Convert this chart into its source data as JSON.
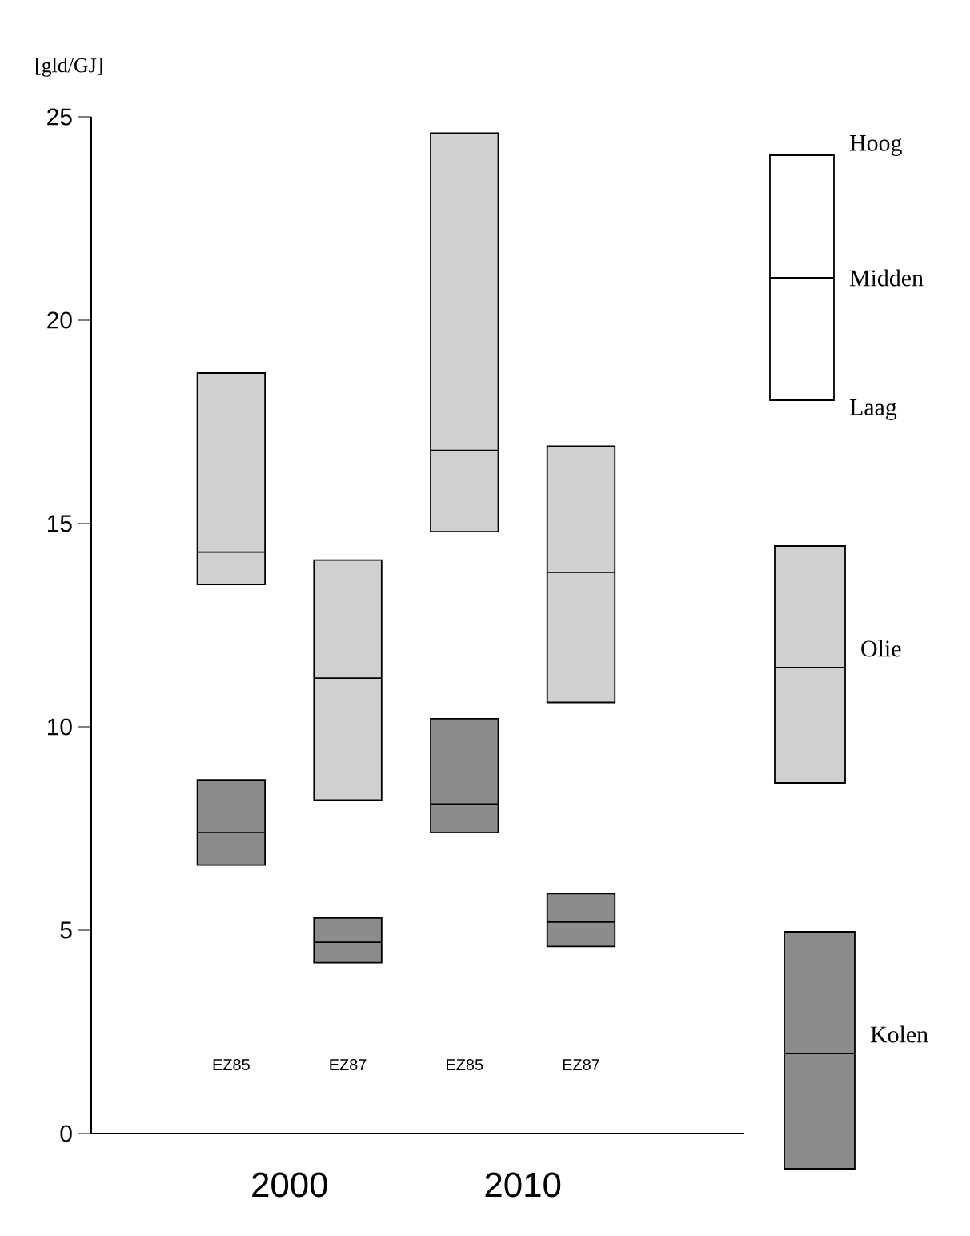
{
  "chart_data": {
    "type": "box",
    "ylabel": "[gld/GJ]",
    "categories": [
      "EZ85",
      "EZ87",
      "EZ85",
      "EZ87"
    ],
    "series": [
      {
        "name": "Olie",
        "color": "#d0d0d0",
        "boxes": [
          {
            "low": 13.5,
            "q1": 13.5,
            "median": 14.3,
            "q3": 18.7,
            "high": 18.7
          },
          {
            "low": 8.2,
            "q1": 8.2,
            "median": 11.2,
            "q3": 14.1,
            "high": 14.1
          },
          {
            "low": 14.8,
            "q1": 14.8,
            "median": 16.8,
            "q3": 24.6,
            "high": 24.6
          },
          {
            "low": 10.6,
            "q1": 10.6,
            "median": 13.8,
            "q3": 16.9,
            "high": 16.9
          }
        ]
      },
      {
        "name": "Kolen",
        "color": "#8c8c8c",
        "boxes": [
          {
            "low": 6.6,
            "q1": 6.6,
            "median": 7.4,
            "q3": 8.7,
            "high": 8.7
          },
          {
            "low": 4.2,
            "q1": 4.2,
            "median": 4.7,
            "q3": 5.3,
            "high": 5.3
          },
          {
            "low": 7.4,
            "q1": 7.4,
            "median": 8.1,
            "q3": 10.2,
            "high": 10.2
          },
          {
            "low": 4.6,
            "q1": 4.6,
            "median": 5.2,
            "q3": 5.9,
            "high": 5.9
          }
        ]
      }
    ],
    "annotations": [
      "2000",
      "2010",
      "Hoog",
      "Midden",
      "Laag"
    ],
    "ylim": [
      0,
      25
    ],
    "yticks": [
      0,
      5,
      10,
      15,
      20,
      25
    ],
    "grid": false,
    "legend": "right"
  }
}
